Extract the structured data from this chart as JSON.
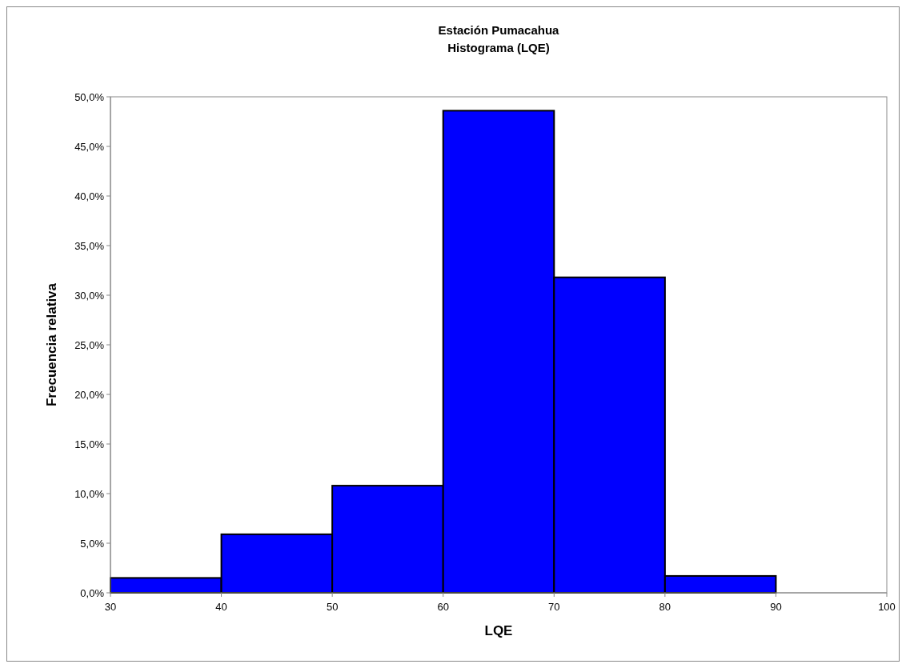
{
  "chart_data": {
    "type": "histogram",
    "title": "Estación Pumacahua",
    "subtitle": "Histograma (LQE)",
    "xlabel": "LQE",
    "ylabel": "Frecuencia relativa",
    "bins": [
      30,
      40,
      50,
      60,
      70,
      80,
      90,
      100
    ],
    "values": [
      1.5,
      5.9,
      10.8,
      48.6,
      31.8,
      1.7,
      0
    ],
    "color": "#0000ff",
    "xlim": [
      30,
      100
    ],
    "xticks": [
      30,
      40,
      50,
      60,
      70,
      80,
      90,
      100
    ],
    "ylim": [
      0,
      50
    ],
    "yticks": [
      {
        "value": 0,
        "label": "0,0%"
      },
      {
        "value": 5,
        "label": "5,0%"
      },
      {
        "value": 10,
        "label": "10,0%"
      },
      {
        "value": 15,
        "label": "15,0%"
      },
      {
        "value": 20,
        "label": "20,0%"
      },
      {
        "value": 25,
        "label": "25,0%"
      },
      {
        "value": 30,
        "label": "30,0%"
      },
      {
        "value": 35,
        "label": "35,0%"
      },
      {
        "value": 40,
        "label": "40,0%"
      },
      {
        "value": 45,
        "label": "45,0%"
      },
      {
        "value": 50,
        "label": "50,0%"
      }
    ],
    "grid": false
  }
}
